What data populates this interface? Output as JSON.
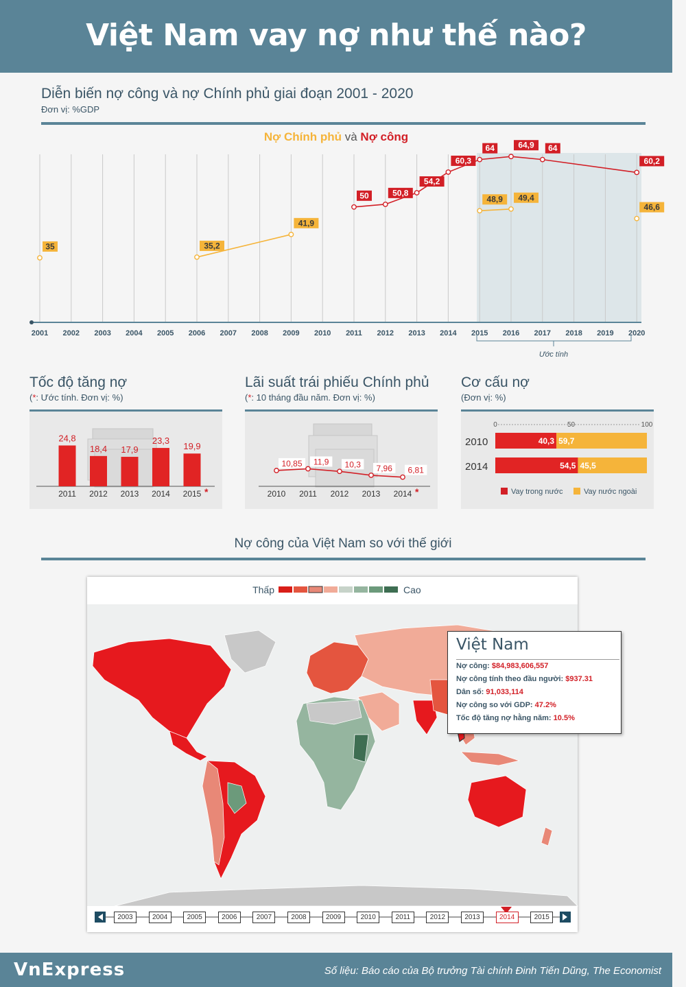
{
  "header": {
    "title": "Việt Nam vay nợ như thế nào?"
  },
  "section1": {
    "title": "Diễn biến nợ công và nợ Chính phủ giai đoạn 2001 - 2020",
    "unit": "Đơn vị: %GDP",
    "legend_gov": "Nợ Chính phủ",
    "legend_and": "và",
    "legend_public": "Nợ công",
    "estimate_label": "Ước tính"
  },
  "section2": {
    "title": "Tốc độ tăng nợ",
    "note_star": "*",
    "note": ": Ước tính. Đơn vị: %"
  },
  "section3": {
    "title": "Lãi suất trái phiếu Chính phủ",
    "note_star": "*",
    "note": ": 10 tháng đầu năm. Đơn vị: %"
  },
  "section4": {
    "title": "Cơ cấu nợ",
    "note": "(Đơn vị: %)",
    "legend_domestic": "Vay trong nước",
    "legend_foreign": "Vay nước ngoài"
  },
  "section5": {
    "title": "Nợ công của Việt Nam so với thế giới",
    "legend_low": "Thấp",
    "legend_high": "Cao"
  },
  "tooltip": {
    "title": "Việt Nam",
    "rows": [
      {
        "label": "Nợ công: ",
        "value": "$84,983,606,557"
      },
      {
        "label": "Nợ công tính theo đầu người: ",
        "value": "$937.31"
      },
      {
        "label": "Dân số: ",
        "value": "91,033,114"
      },
      {
        "label": "Nợ công so với GDP: ",
        "value": "47.2%"
      },
      {
        "label": "Tốc độ tăng nợ hằng năm: ",
        "value": "10.5%"
      }
    ]
  },
  "timeline": {
    "years": [
      "2003",
      "2004",
      "2005",
      "2006",
      "2007",
      "2008",
      "2009",
      "2010",
      "2011",
      "2012",
      "2013",
      "2014",
      "2015"
    ],
    "selected": "2014"
  },
  "footer": {
    "logo": "VnExpress",
    "source": "Số liệu: Báo cáo của Bộ trưởng Tài chính Đinh Tiến Dũng, The Economist"
  },
  "colors": {
    "header_bg": "#5a8497",
    "public_debt": "#d21f26",
    "gov_debt": "#f5b43a",
    "estimate_band": "#dde6e9"
  },
  "chart_data": [
    {
      "type": "line",
      "title": "Diễn biến nợ công và nợ Chính phủ giai đoạn 2001 - 2020",
      "x": [
        "2001",
        "2002",
        "2003",
        "2004",
        "2005",
        "2006",
        "2007",
        "2008",
        "2009",
        "2010",
        "2011",
        "2012",
        "2013",
        "2014",
        "2015",
        "2016",
        "2017",
        "2018",
        "2019",
        "2020"
      ],
      "series": [
        {
          "name": "Nợ Chính phủ",
          "points": [
            [
              "2001",
              35
            ],
            [
              "2006",
              35.2
            ],
            [
              "2009",
              41.9
            ],
            [
              "2015",
              48.9
            ],
            [
              "2016",
              49.4
            ],
            [
              "2020",
              46.6
            ]
          ],
          "labels": [
            "35",
            "35,2",
            "41,9",
            "48,9",
            "49,4",
            "46,6"
          ]
        },
        {
          "name": "Nợ công",
          "points": [
            [
              "2011",
              50
            ],
            [
              "2012",
              50.8
            ],
            [
              "2013",
              54.2
            ],
            [
              "2014",
              60.3
            ],
            [
              "2015",
              64
            ],
            [
              "2016",
              64.9
            ],
            [
              "2017",
              64
            ],
            [
              "2020",
              60.2
            ]
          ],
          "labels": [
            "50",
            "50,8",
            "54,2",
            "60,3",
            "64",
            "64,9",
            "64",
            "60,2"
          ]
        }
      ],
      "estimate_range": [
        "2015",
        "2020"
      ],
      "grid": true
    },
    {
      "type": "bar",
      "title": "Tốc độ tăng nợ",
      "categories": [
        "2011",
        "2012",
        "2013",
        "2014",
        "2015"
      ],
      "values": [
        24.8,
        18.4,
        17.9,
        23.3,
        19.9
      ],
      "labels": [
        "24,8",
        "18,4",
        "17,9",
        "23,3",
        "19,9"
      ],
      "starred": [
        "2015"
      ]
    },
    {
      "type": "line",
      "title": "Lãi suất trái phiếu Chính phủ",
      "categories": [
        "2010",
        "2011",
        "2012",
        "2013",
        "2014"
      ],
      "values": [
        10.85,
        11.9,
        10.3,
        7.96,
        6.81
      ],
      "labels": [
        "10,85",
        "11,9",
        "10,3",
        "7,96",
        "6,81"
      ],
      "starred": [
        "2014"
      ]
    },
    {
      "type": "bar",
      "title": "Cơ cấu nợ",
      "categories": [
        "2010",
        "2014"
      ],
      "series": [
        {
          "name": "Vay trong nước",
          "values": [
            40.3,
            54.5
          ],
          "labels": [
            "40,3",
            "54,5"
          ]
        },
        {
          "name": "Vay nước ngoài",
          "values": [
            59.7,
            45.5
          ],
          "labels": [
            "59,7",
            "45,5"
          ]
        }
      ],
      "xticks": [
        "0",
        "50",
        "100"
      ],
      "stacked": true,
      "orientation": "horizontal"
    }
  ]
}
